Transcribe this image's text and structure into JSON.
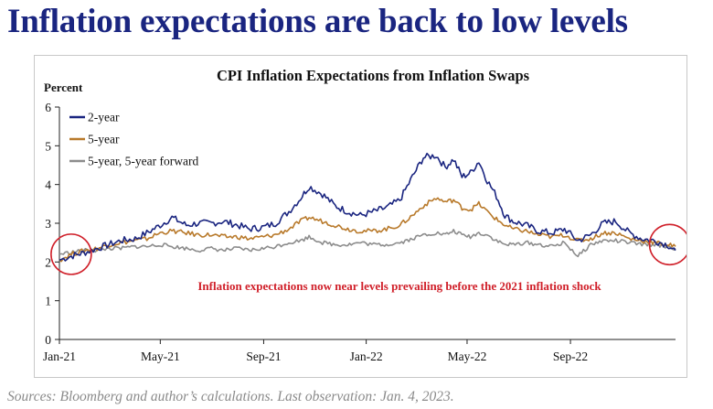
{
  "headline": "Inflation expectations are back to low levels",
  "source_note": "Sources: Bloomberg and author’s calculations. Last observation: Jan. 4, 2023.",
  "colors": {
    "headline": "#1a2580",
    "two_year": "#1a2580",
    "five_year": "#b8792a",
    "five_five_forward": "#8c8c8c",
    "annotation": "#d0202a",
    "circle": "#d0202a"
  },
  "chart_data": {
    "type": "line",
    "title": "CPI Inflation Expectations from Inflation Swaps",
    "ylabel": "Percent",
    "xlabel": "",
    "ylim": [
      0,
      6
    ],
    "yticks": [
      0,
      1,
      2,
      3,
      4,
      5,
      6
    ],
    "xlim": [
      "2021-01-01",
      "2023-01-04"
    ],
    "xticks": [
      {
        "date": "2021-01-01",
        "label": "Jan-21"
      },
      {
        "date": "2021-05-01",
        "label": "May-21"
      },
      {
        "date": "2021-09-01",
        "label": "Sep-21"
      },
      {
        "date": "2022-01-01",
        "label": "Jan-22"
      },
      {
        "date": "2022-05-01",
        "label": "May-22"
      },
      {
        "date": "2022-09-01",
        "label": "Sep-22"
      }
    ],
    "grid": false,
    "legend_position": "top-left",
    "annotation": "Inflation expectations now near levels prevailing  before the 2021 inflation shock",
    "highlight_circles": [
      {
        "date": "2021-01-15",
        "value": 2.2
      },
      {
        "date": "2022-12-28",
        "value": 2.45
      }
    ],
    "series": [
      {
        "name": "2-year",
        "points": [
          [
            "2021-01-01",
            2.05
          ],
          [
            "2021-01-15",
            2.15
          ],
          [
            "2021-02-01",
            2.25
          ],
          [
            "2021-02-15",
            2.35
          ],
          [
            "2021-03-01",
            2.45
          ],
          [
            "2021-03-15",
            2.55
          ],
          [
            "2021-04-01",
            2.6
          ],
          [
            "2021-04-15",
            2.75
          ],
          [
            "2021-05-01",
            2.95
          ],
          [
            "2021-05-15",
            3.15
          ],
          [
            "2021-06-01",
            2.95
          ],
          [
            "2021-06-15",
            3.0
          ],
          [
            "2021-07-01",
            3.0
          ],
          [
            "2021-07-15",
            3.05
          ],
          [
            "2021-08-01",
            2.95
          ],
          [
            "2021-08-15",
            2.85
          ],
          [
            "2021-09-01",
            2.9
          ],
          [
            "2021-09-15",
            3.0
          ],
          [
            "2021-10-01",
            3.3
          ],
          [
            "2021-10-15",
            3.65
          ],
          [
            "2021-10-25",
            3.95
          ],
          [
            "2021-11-10",
            3.75
          ],
          [
            "2021-11-25",
            3.45
          ],
          [
            "2021-12-10",
            3.3
          ],
          [
            "2021-12-25",
            3.2
          ],
          [
            "2022-01-10",
            3.3
          ],
          [
            "2022-01-25",
            3.4
          ],
          [
            "2022-02-10",
            3.6
          ],
          [
            "2022-02-25",
            4.2
          ],
          [
            "2022-03-10",
            4.7
          ],
          [
            "2022-03-25",
            4.75
          ],
          [
            "2022-04-05",
            4.45
          ],
          [
            "2022-04-15",
            4.65
          ],
          [
            "2022-04-25",
            4.2
          ],
          [
            "2022-05-05",
            4.3
          ],
          [
            "2022-05-15",
            4.6
          ],
          [
            "2022-05-25",
            4.1
          ],
          [
            "2022-06-05",
            3.7
          ],
          [
            "2022-06-15",
            3.2
          ],
          [
            "2022-06-25",
            3.05
          ],
          [
            "2022-07-10",
            2.95
          ],
          [
            "2022-07-25",
            2.8
          ],
          [
            "2022-08-10",
            2.75
          ],
          [
            "2022-08-25",
            2.85
          ],
          [
            "2022-09-10",
            2.55
          ],
          [
            "2022-09-25",
            2.7
          ],
          [
            "2022-10-10",
            3.0
          ],
          [
            "2022-10-25",
            3.05
          ],
          [
            "2022-11-10",
            2.75
          ],
          [
            "2022-11-25",
            2.6
          ],
          [
            "2022-12-10",
            2.55
          ],
          [
            "2022-12-25",
            2.45
          ],
          [
            "2023-01-04",
            2.3
          ]
        ]
      },
      {
        "name": "5-year",
        "points": [
          [
            "2021-01-01",
            2.05
          ],
          [
            "2021-01-15",
            2.2
          ],
          [
            "2021-02-01",
            2.3
          ],
          [
            "2021-02-15",
            2.35
          ],
          [
            "2021-03-01",
            2.45
          ],
          [
            "2021-03-15",
            2.5
          ],
          [
            "2021-04-01",
            2.55
          ],
          [
            "2021-04-15",
            2.6
          ],
          [
            "2021-05-01",
            2.75
          ],
          [
            "2021-05-15",
            2.8
          ],
          [
            "2021-06-01",
            2.75
          ],
          [
            "2021-06-15",
            2.7
          ],
          [
            "2021-07-01",
            2.7
          ],
          [
            "2021-07-15",
            2.65
          ],
          [
            "2021-08-01",
            2.65
          ],
          [
            "2021-08-15",
            2.6
          ],
          [
            "2021-09-01",
            2.65
          ],
          [
            "2021-09-15",
            2.7
          ],
          [
            "2021-10-01",
            2.85
          ],
          [
            "2021-10-15",
            3.05
          ],
          [
            "2021-10-25",
            3.15
          ],
          [
            "2021-11-10",
            3.05
          ],
          [
            "2021-11-25",
            2.95
          ],
          [
            "2021-12-10",
            2.85
          ],
          [
            "2021-12-25",
            2.8
          ],
          [
            "2022-01-10",
            2.8
          ],
          [
            "2022-01-25",
            2.85
          ],
          [
            "2022-02-10",
            2.95
          ],
          [
            "2022-02-25",
            3.2
          ],
          [
            "2022-03-10",
            3.45
          ],
          [
            "2022-03-25",
            3.65
          ],
          [
            "2022-04-05",
            3.55
          ],
          [
            "2022-04-15",
            3.6
          ],
          [
            "2022-04-25",
            3.4
          ],
          [
            "2022-05-05",
            3.35
          ],
          [
            "2022-05-15",
            3.5
          ],
          [
            "2022-05-25",
            3.3
          ],
          [
            "2022-06-05",
            3.1
          ],
          [
            "2022-06-15",
            2.95
          ],
          [
            "2022-06-25",
            2.85
          ],
          [
            "2022-07-10",
            2.8
          ],
          [
            "2022-07-25",
            2.7
          ],
          [
            "2022-08-10",
            2.65
          ],
          [
            "2022-08-25",
            2.7
          ],
          [
            "2022-09-10",
            2.55
          ],
          [
            "2022-09-25",
            2.6
          ],
          [
            "2022-10-10",
            2.75
          ],
          [
            "2022-10-25",
            2.75
          ],
          [
            "2022-11-10",
            2.6
          ],
          [
            "2022-11-25",
            2.55
          ],
          [
            "2022-12-10",
            2.5
          ],
          [
            "2022-12-25",
            2.45
          ],
          [
            "2023-01-04",
            2.4
          ]
        ]
      },
      {
        "name": "5-year, 5-year forward",
        "points": [
          [
            "2021-01-01",
            2.2
          ],
          [
            "2021-01-15",
            2.25
          ],
          [
            "2021-02-01",
            2.3
          ],
          [
            "2021-02-15",
            2.3
          ],
          [
            "2021-03-01",
            2.35
          ],
          [
            "2021-03-15",
            2.35
          ],
          [
            "2021-04-01",
            2.4
          ],
          [
            "2021-04-15",
            2.4
          ],
          [
            "2021-05-01",
            2.45
          ],
          [
            "2021-05-15",
            2.4
          ],
          [
            "2021-06-01",
            2.35
          ],
          [
            "2021-06-15",
            2.3
          ],
          [
            "2021-07-01",
            2.35
          ],
          [
            "2021-07-15",
            2.3
          ],
          [
            "2021-08-01",
            2.35
          ],
          [
            "2021-08-15",
            2.3
          ],
          [
            "2021-09-01",
            2.35
          ],
          [
            "2021-09-15",
            2.4
          ],
          [
            "2021-10-01",
            2.5
          ],
          [
            "2021-10-15",
            2.55
          ],
          [
            "2021-10-25",
            2.65
          ],
          [
            "2021-11-10",
            2.5
          ],
          [
            "2021-11-25",
            2.45
          ],
          [
            "2021-12-10",
            2.45
          ],
          [
            "2021-12-25",
            2.5
          ],
          [
            "2022-01-10",
            2.45
          ],
          [
            "2022-01-25",
            2.45
          ],
          [
            "2022-02-10",
            2.5
          ],
          [
            "2022-02-25",
            2.6
          ],
          [
            "2022-03-10",
            2.7
          ],
          [
            "2022-03-25",
            2.75
          ],
          [
            "2022-04-05",
            2.7
          ],
          [
            "2022-04-15",
            2.8
          ],
          [
            "2022-04-25",
            2.7
          ],
          [
            "2022-05-05",
            2.65
          ],
          [
            "2022-05-15",
            2.75
          ],
          [
            "2022-05-25",
            2.7
          ],
          [
            "2022-06-05",
            2.55
          ],
          [
            "2022-06-15",
            2.45
          ],
          [
            "2022-06-25",
            2.45
          ],
          [
            "2022-07-10",
            2.5
          ],
          [
            "2022-07-25",
            2.45
          ],
          [
            "2022-08-10",
            2.4
          ],
          [
            "2022-08-25",
            2.5
          ],
          [
            "2022-09-10",
            2.15
          ],
          [
            "2022-09-25",
            2.45
          ],
          [
            "2022-10-10",
            2.55
          ],
          [
            "2022-10-25",
            2.55
          ],
          [
            "2022-11-10",
            2.5
          ],
          [
            "2022-11-25",
            2.45
          ],
          [
            "2022-12-10",
            2.45
          ],
          [
            "2022-12-25",
            2.4
          ],
          [
            "2023-01-04",
            2.35
          ]
        ]
      }
    ]
  }
}
